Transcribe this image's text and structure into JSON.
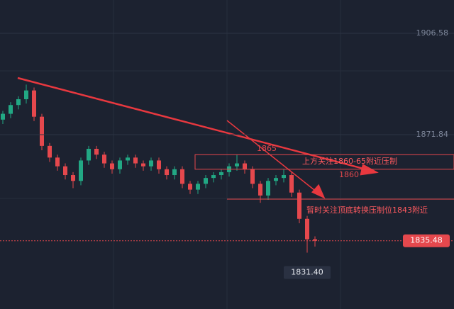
{
  "chart_data": {
    "type": "candlestick",
    "open": [
      1877,
      1879,
      1882,
      1884,
      1887,
      1878,
      1868,
      1864,
      1861,
      1858,
      1856,
      1863,
      1867,
      1865,
      1862,
      1860,
      1863,
      1864,
      1862,
      1861,
      1863,
      1860,
      1858,
      1860,
      1855,
      1853,
      1855,
      1857,
      1858,
      1859,
      1861,
      1862,
      1860,
      1855,
      1851,
      1856,
      1857,
      1858,
      1852,
      1843,
      1836
    ],
    "high": [
      1880,
      1883,
      1885,
      1889,
      1888,
      1879,
      1869,
      1865,
      1862,
      1859,
      1864,
      1868,
      1868,
      1866,
      1863,
      1864,
      1865,
      1865,
      1863,
      1864,
      1864,
      1861,
      1861,
      1861,
      1856,
      1856,
      1858,
      1859,
      1860,
      1862,
      1865,
      1863,
      1861,
      1856,
      1857,
      1858,
      1860,
      1859,
      1853,
      1844,
      1837
    ],
    "low": [
      1875.5,
      1877.5,
      1880.5,
      1882.5,
      1876.5,
      1866.5,
      1862.5,
      1859.5,
      1856.5,
      1853.5,
      1854.5,
      1861.5,
      1863.5,
      1860.5,
      1858.5,
      1858.5,
      1861.5,
      1860.5,
      1859.5,
      1859.5,
      1858.5,
      1856.5,
      1856.5,
      1853.5,
      1851.5,
      1851.5,
      1853.5,
      1855.5,
      1856.5,
      1857.5,
      1859.5,
      1858.5,
      1853.5,
      1848.5,
      1849.5,
      1854.5,
      1855.5,
      1850.5,
      1841.5,
      1831.4,
      1833.5
    ],
    "close": [
      1879,
      1882,
      1884,
      1887,
      1878,
      1868,
      1864,
      1861,
      1858,
      1856,
      1863,
      1867,
      1865,
      1862,
      1860,
      1863,
      1864,
      1862,
      1861,
      1863,
      1860,
      1858,
      1860,
      1855,
      1853,
      1855,
      1857,
      1858,
      1859,
      1861,
      1862,
      1860,
      1855,
      1851,
      1856,
      1857,
      1858,
      1852,
      1843,
      1836,
      1835.48
    ],
    "close_label": "1835.48",
    "low_label": "1831.40",
    "up_color": "#22a884",
    "down_color": "#e5484d",
    "ylim": [
      1812.1,
      1918.0
    ],
    "yticks": [
      {
        "value": 1906.58,
        "label": "1906.58"
      },
      {
        "value": 1871.84,
        "label": "1871.84"
      }
    ],
    "levels": [
      {
        "value": 1865,
        "label": "1865"
      },
      {
        "value": 1860,
        "label": "1860"
      }
    ],
    "annotations": [
      "上方关注1860-65附近压制",
      "暂时关注顶底转换压制位1843附近"
    ]
  }
}
